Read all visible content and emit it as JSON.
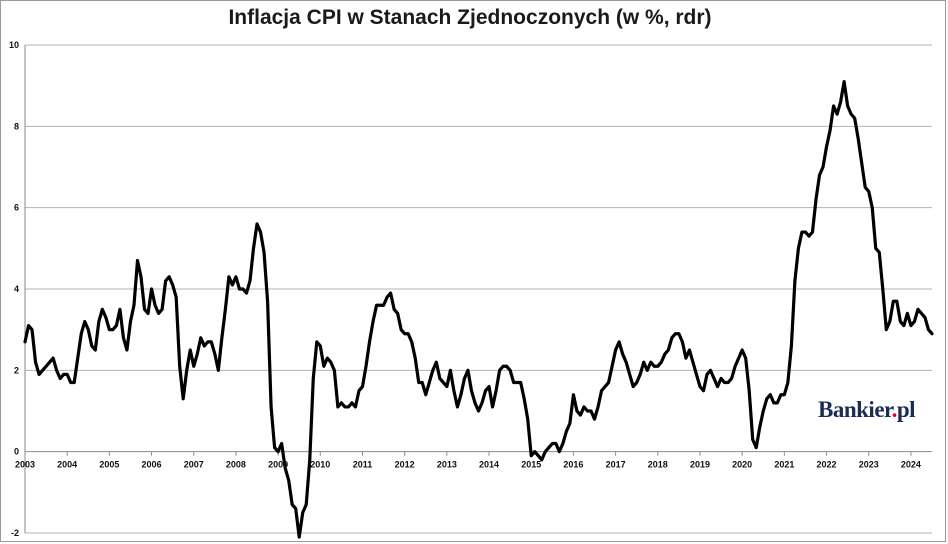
{
  "chart_data": {
    "type": "line",
    "title": "Inflacja CPI w Stanach Zjednoczonych (w %, rdr)",
    "xlabel": "",
    "ylabel": "",
    "ylim": [
      -2,
      10
    ],
    "yticks": [
      -2,
      0,
      2,
      4,
      6,
      8,
      10
    ],
    "xlim": [
      "2003-01",
      "2024-07"
    ],
    "xticks": [
      "2003",
      "2004",
      "2005",
      "2006",
      "2007",
      "2008",
      "2009",
      "2010",
      "2011",
      "2012",
      "2013",
      "2014",
      "2015",
      "2016",
      "2017",
      "2018",
      "2019",
      "2020",
      "2021",
      "2022",
      "2023",
      "2024"
    ],
    "grid": "horizontal",
    "legend": "none",
    "line_color": "#000000",
    "series": [
      {
        "x_start": "2003-01",
        "frequency": "monthly",
        "values": [
          2.7,
          3.1,
          3.0,
          2.2,
          1.9,
          2.0,
          2.1,
          2.2,
          2.3,
          2.0,
          1.8,
          1.9,
          1.9,
          1.7,
          1.7,
          2.3,
          2.9,
          3.2,
          3.0,
          2.6,
          2.5,
          3.2,
          3.5,
          3.3,
          3.0,
          3.0,
          3.1,
          3.5,
          2.8,
          2.5,
          3.2,
          3.6,
          4.7,
          4.3,
          3.5,
          3.4,
          4.0,
          3.6,
          3.4,
          3.5,
          4.2,
          4.3,
          4.1,
          3.8,
          2.1,
          1.3,
          2.0,
          2.5,
          2.1,
          2.4,
          2.8,
          2.6,
          2.7,
          2.7,
          2.4,
          2.0,
          2.8,
          3.5,
          4.3,
          4.1,
          4.3,
          4.0,
          4.0,
          3.9,
          4.2,
          5.0,
          5.6,
          5.4,
          4.9,
          3.7,
          1.1,
          0.1,
          0.0,
          0.2,
          -0.4,
          -0.7,
          -1.3,
          -1.4,
          -2.1,
          -1.5,
          -1.3,
          -0.2,
          1.8,
          2.7,
          2.6,
          2.1,
          2.3,
          2.2,
          2.0,
          1.1,
          1.2,
          1.1,
          1.1,
          1.2,
          1.1,
          1.5,
          1.6,
          2.1,
          2.7,
          3.2,
          3.6,
          3.6,
          3.6,
          3.8,
          3.9,
          3.5,
          3.4,
          3.0,
          2.9,
          2.9,
          2.7,
          2.3,
          1.7,
          1.7,
          1.4,
          1.7,
          2.0,
          2.2,
          1.8,
          1.7,
          1.6,
          2.0,
          1.5,
          1.1,
          1.4,
          1.8,
          2.0,
          1.5,
          1.2,
          1.0,
          1.2,
          1.5,
          1.6,
          1.1,
          1.5,
          2.0,
          2.1,
          2.1,
          2.0,
          1.7,
          1.7,
          1.7,
          1.3,
          0.8,
          -0.1,
          0.0,
          -0.1,
          -0.2,
          0.0,
          0.1,
          0.2,
          0.2,
          0.0,
          0.2,
          0.5,
          0.7,
          1.4,
          1.0,
          0.9,
          1.1,
          1.0,
          1.0,
          0.8,
          1.1,
          1.5,
          1.6,
          1.7,
          2.1,
          2.5,
          2.7,
          2.4,
          2.2,
          1.9,
          1.6,
          1.7,
          1.9,
          2.2,
          2.0,
          2.2,
          2.1,
          2.1,
          2.2,
          2.4,
          2.5,
          2.8,
          2.9,
          2.9,
          2.7,
          2.3,
          2.5,
          2.2,
          1.9,
          1.6,
          1.5,
          1.9,
          2.0,
          1.8,
          1.6,
          1.8,
          1.7,
          1.7,
          1.8,
          2.1,
          2.3,
          2.5,
          2.3,
          1.5,
          0.3,
          0.1,
          0.6,
          1.0,
          1.3,
          1.4,
          1.2,
          1.2,
          1.4,
          1.4,
          1.7,
          2.6,
          4.2,
          5.0,
          5.4,
          5.4,
          5.3,
          5.4,
          6.2,
          6.8,
          7.0,
          7.5,
          7.9,
          8.5,
          8.3,
          8.6,
          9.1,
          8.5,
          8.3,
          8.2,
          7.7,
          7.1,
          6.5,
          6.4,
          6.0,
          5.0,
          4.9,
          4.0,
          3.0,
          3.2,
          3.7,
          3.7,
          3.2,
          3.1,
          3.4,
          3.1,
          3.2,
          3.5,
          3.4,
          3.3,
          3.0,
          2.9
        ]
      }
    ]
  },
  "watermark": {
    "text_main": "Bankier",
    "text_dot": ".",
    "text_suffix": "pl",
    "dot_color": "#e2001a"
  }
}
